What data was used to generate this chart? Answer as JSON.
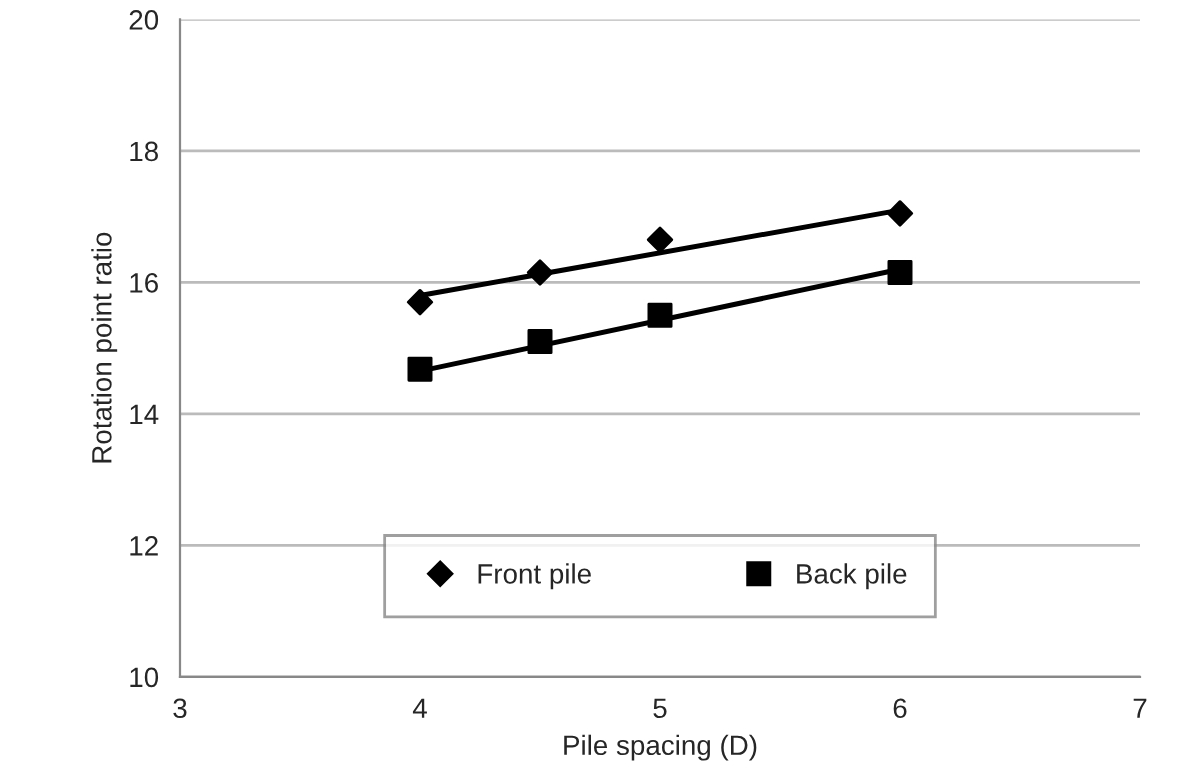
{
  "chart_data": {
    "type": "scatter",
    "xlabel": "Pile spacing (D)",
    "ylabel": "Rotation point ratio",
    "xlim": [
      3,
      7
    ],
    "xticks": [
      3,
      4,
      5,
      6,
      7
    ],
    "ylim": [
      10,
      20
    ],
    "yticks": [
      10,
      12,
      14,
      16,
      18,
      20
    ],
    "grid": "y",
    "legend": "bottom",
    "series": [
      {
        "name": "Front pile",
        "color": "#000000",
        "marker": "diamond",
        "x": [
          4,
          4.5,
          5,
          6
        ],
        "values": [
          15.7,
          16.15,
          16.65,
          17.05
        ]
      },
      {
        "name": "Back pile",
        "color": "#000000",
        "marker": "square",
        "x": [
          4,
          4.5,
          5,
          6
        ],
        "values": [
          14.68,
          15.1,
          15.5,
          16.15
        ]
      },
      {
        "type": "line",
        "color": "#000000",
        "marker": "none",
        "x": [
          4,
          6
        ],
        "values": [
          15.8,
          17.1
        ]
      },
      {
        "type": "line",
        "color": "#000000",
        "marker": "none",
        "x": [
          4,
          6
        ],
        "values": [
          14.65,
          16.2
        ]
      }
    ]
  }
}
